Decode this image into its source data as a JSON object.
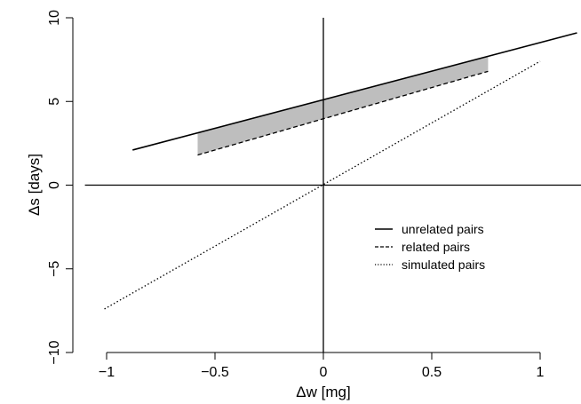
{
  "chart_data": {
    "type": "line",
    "xlabel": "Δw [mg]",
    "ylabel": "Δs [days]",
    "xlim": [
      -1.1,
      1.2
    ],
    "ylim": [
      -10,
      10
    ],
    "xticks": [
      -1,
      -0.5,
      0,
      0.5,
      1
    ],
    "xtick_labels": [
      "−1",
      "−0.5",
      "0",
      "0.5",
      "1"
    ],
    "yticks": [
      -10,
      -5,
      0,
      5,
      10
    ],
    "ytick_labels": [
      "−10",
      "−5",
      "0",
      "5",
      "10"
    ],
    "reference_lines": {
      "x": 0,
      "y": 0
    },
    "grid": false,
    "legend_position": "right",
    "series": [
      {
        "name": "unrelated pairs",
        "style": "solid",
        "x": [
          -0.88,
          1.17
        ],
        "y": [
          2.1,
          9.1
        ]
      },
      {
        "name": "related pairs",
        "style": "dashed",
        "x": [
          -0.58,
          0.76
        ],
        "y": [
          1.8,
          6.8
        ]
      },
      {
        "name": "simulated pairs",
        "style": "dotted",
        "x": [
          -1.01,
          1.0
        ],
        "y": [
          -7.4,
          7.4
        ]
      }
    ],
    "shaded_region": {
      "between": [
        "unrelated pairs",
        "related pairs"
      ],
      "x_range": [
        -0.58,
        0.76
      ],
      "color": "#bebebe"
    }
  }
}
